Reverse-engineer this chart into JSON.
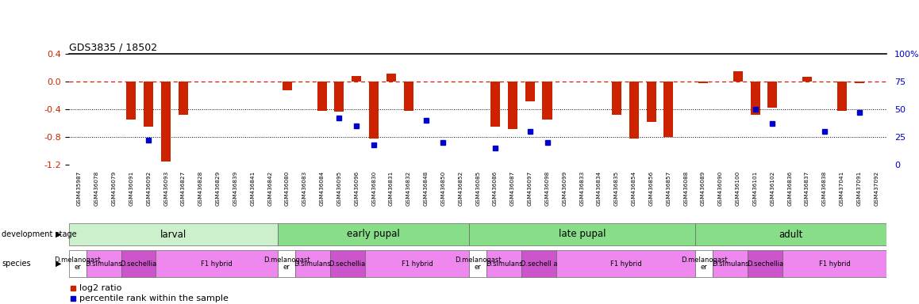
{
  "title": "GDS3835 / 18502",
  "ylim_left": [
    -1.2,
    0.4
  ],
  "ylim_right": [
    0,
    100
  ],
  "yticks_left": [
    -1.2,
    -0.8,
    -0.4,
    0.0,
    0.4
  ],
  "yticks_right": [
    0,
    25,
    50,
    75,
    100
  ],
  "ytick_labels_right": [
    "0",
    "25",
    "50",
    "75",
    "100%"
  ],
  "sample_ids": [
    "GSM435987",
    "GSM436078",
    "GSM436079",
    "GSM436091",
    "GSM436092",
    "GSM436093",
    "GSM436827",
    "GSM436828",
    "GSM436829",
    "GSM436839",
    "GSM436841",
    "GSM436842",
    "GSM436080",
    "GSM436083",
    "GSM436084",
    "GSM436095",
    "GSM436096",
    "GSM436830",
    "GSM436831",
    "GSM436832",
    "GSM436848",
    "GSM436850",
    "GSM436852",
    "GSM436085",
    "GSM436086",
    "GSM436087",
    "GSM436097",
    "GSM436098",
    "GSM436099",
    "GSM436833",
    "GSM436834",
    "GSM436835",
    "GSM436854",
    "GSM436856",
    "GSM436857",
    "GSM436088",
    "GSM436089",
    "GSM436090",
    "GSM436100",
    "GSM436101",
    "GSM436102",
    "GSM436836",
    "GSM436837",
    "GSM436838",
    "GSM437041",
    "GSM437091",
    "GSM437092"
  ],
  "log2_ratio": [
    0.0,
    0.0,
    0.0,
    -0.55,
    -0.65,
    -1.15,
    -0.48,
    0.0,
    0.0,
    0.0,
    0.0,
    0.0,
    -0.12,
    0.0,
    -0.42,
    -0.43,
    0.08,
    -0.82,
    0.12,
    -0.42,
    0.0,
    0.0,
    0.0,
    0.0,
    -0.65,
    -0.68,
    -0.28,
    -0.55,
    0.0,
    0.0,
    0.0,
    -0.48,
    -0.82,
    -0.58,
    -0.8,
    0.0,
    -0.02,
    0.0,
    0.15,
    -0.48,
    -0.38,
    0.0,
    0.07,
    0.0,
    -0.42,
    -0.02,
    0.0
  ],
  "percentile": [
    null,
    null,
    null,
    null,
    22,
    null,
    null,
    null,
    null,
    null,
    null,
    null,
    null,
    null,
    null,
    42,
    35,
    18,
    null,
    null,
    40,
    20,
    null,
    null,
    15,
    null,
    30,
    20,
    null,
    null,
    null,
    null,
    null,
    null,
    null,
    null,
    null,
    null,
    null,
    50,
    37,
    null,
    null,
    30,
    null,
    47,
    null
  ],
  "bar_color": "#cc2200",
  "dot_color": "#0000cc",
  "zeroline_color": "#cc2200",
  "right_axis_color": "#0000cc",
  "stage_larval_color": "#ccf0cc",
  "stage_other_color": "#88dd88",
  "species_melan_color": "#ffffff",
  "species_sim_color": "#ee88ee",
  "species_sech_color": "#cc55cc",
  "species_hybrid_color": "#ee88ee"
}
